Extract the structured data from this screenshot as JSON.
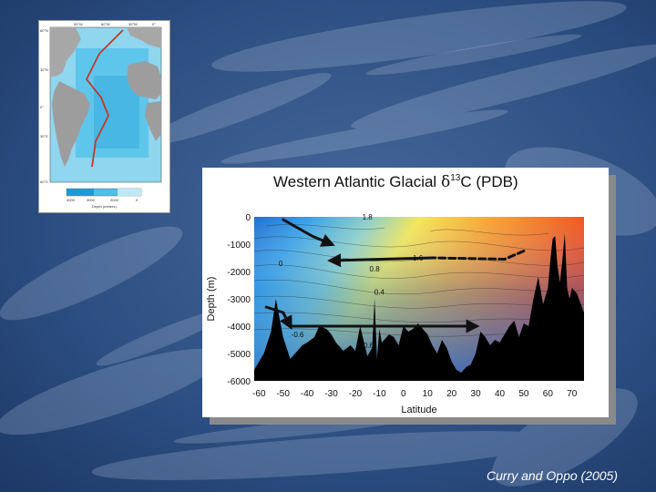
{
  "colors": {
    "background": "#1e3f6e",
    "ocean_high": "#e8391c",
    "ocean_low": "#1f78d6",
    "seafloor": "#000000",
    "arrows": "#111111"
  },
  "map_inset": {
    "lat_labels_left": [
      "60°N",
      "30°N",
      "0°",
      "30°S",
      "60°S"
    ],
    "lon_labels_top": [
      "90°W",
      "60°W",
      "30°W",
      "0°"
    ],
    "colorbar_ticks": [
      "4000",
      "3000",
      "2000",
      "0"
    ],
    "colorbar_label": "Depth (meters)",
    "icons": [
      "atlantic-map-icon",
      "transect-line-icon"
    ]
  },
  "chart_data": {
    "type": "heatmap",
    "title_prefix": "Western Atlantic Glacial",
    "title_symbol": "δ",
    "title_sup": "13",
    "title_suffix": "C (PDB)",
    "xlabel": "Latitude",
    "ylabel": "Depth (m)",
    "xlim": [
      -62,
      75
    ],
    "ylim": [
      -6000,
      0
    ],
    "x_ticks": [
      "-60",
      "-50",
      "-40",
      "-30",
      "-20",
      "-10",
      "0",
      "10",
      "20",
      "30",
      "40",
      "50",
      "60",
      "70"
    ],
    "y_ticks": [
      "0",
      "-1000",
      "-2000",
      "-3000",
      "-4000",
      "-5000",
      "-6000"
    ],
    "contour_labels": [
      {
        "text": "1.8",
        "x": -15,
        "y": -100
      },
      {
        "text": "0",
        "x": -51,
        "y": -1800
      },
      {
        "text": "0.8",
        "x": -12,
        "y": -2000
      },
      {
        "text": "0.4",
        "x": -10,
        "y": -2850
      },
      {
        "text": "1.6",
        "x": 6,
        "y": -1600
      },
      {
        "text": "-0.6",
        "x": -44,
        "y": -4400
      },
      {
        "text": "-0.6",
        "x": -15,
        "y": -4800
      }
    ],
    "seafloor_profile": {
      "x": [
        -62,
        -58,
        -55,
        -53,
        -50,
        -47,
        -45,
        -42,
        -40,
        -37,
        -35,
        -32,
        -30,
        -28,
        -25,
        -22,
        -20,
        -18,
        -15,
        -13,
        -12,
        -11,
        -10,
        -9,
        -8,
        -6,
        -4,
        -2,
        0,
        2,
        4,
        6,
        8,
        10,
        12,
        14,
        16,
        18,
        20,
        22,
        24,
        26,
        28,
        30,
        32,
        34,
        36,
        38,
        40,
        42,
        44,
        46,
        48,
        50,
        52,
        54,
        56,
        58,
        60,
        61,
        62,
        63,
        64,
        65,
        66,
        67,
        68,
        69,
        70,
        71,
        72,
        75
      ],
      "depth": [
        -5600,
        -5000,
        -4200,
        -3000,
        -4400,
        -5200,
        -5000,
        -4700,
        -4600,
        -4400,
        -4000,
        -4100,
        -4300,
        -4600,
        -4900,
        -4700,
        -4900,
        -4000,
        -5100,
        -4800,
        -3000,
        -5200,
        -4100,
        -4600,
        -4500,
        -4300,
        -4400,
        -4700,
        -4000,
        -4200,
        -4100,
        -3900,
        -4100,
        -4300,
        -4700,
        -5000,
        -4500,
        -4800,
        -5300,
        -5600,
        -5700,
        -5500,
        -5400,
        -5000,
        -4200,
        -4400,
        -4700,
        -4500,
        -4600,
        -4300,
        -4000,
        -3800,
        -4400,
        -3900,
        -4000,
        -3000,
        -2200,
        -3200,
        -2600,
        -1600,
        -800,
        -700,
        -1800,
        -2400,
        -1600,
        -600,
        -2600,
        -3000,
        -2600,
        -2700,
        -2800,
        -3500
      ]
    },
    "arrows": [
      {
        "name": "southward-descending-arrow",
        "points": [
          [
            -50,
            -100
          ],
          [
            -38,
            -700
          ],
          [
            -30,
            -1000
          ]
        ],
        "style": "solid"
      },
      {
        "name": "northern-source-dashed-line",
        "points": [
          [
            50,
            -1250
          ],
          [
            42,
            -1550
          ],
          [
            12,
            -1500
          ]
        ],
        "style": "dashed"
      },
      {
        "name": "westward-intermediate-arrow",
        "points": [
          [
            12,
            -1500
          ],
          [
            -30,
            -1600
          ]
        ],
        "style": "solid"
      },
      {
        "name": "deep-southern-curve",
        "points": [
          [
            -57,
            -3300
          ],
          [
            -50,
            -3500
          ],
          [
            -47,
            -4000
          ]
        ],
        "style": "solid"
      },
      {
        "name": "northward-deep-arrow",
        "points": [
          [
            -47,
            -4000
          ],
          [
            30,
            -4000
          ]
        ],
        "style": "solid"
      }
    ],
    "grid": false
  },
  "citation": "Curry and Oppo (2005)"
}
